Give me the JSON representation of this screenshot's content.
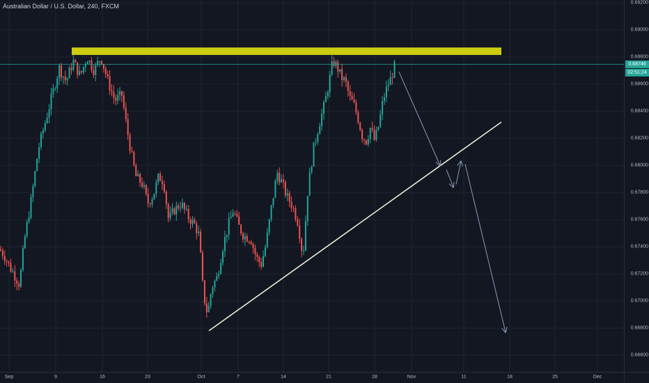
{
  "header": {
    "title": "Australian Dollar / U.S. Dollar, 240, FXCM"
  },
  "colors": {
    "background": "#131722",
    "grid": "#1f2430",
    "up": "#26a69a",
    "down": "#ef5350",
    "resistance_zone": "#cccc10",
    "trendline": "#f0ecd8",
    "projection_arrow": "#8c9bb8",
    "last_price_tag": "#26a69a",
    "countdown_tag": "#26a69a"
  },
  "price_tags": {
    "last_price": "0.68746",
    "countdown": "02:51:24"
  },
  "chart_data": {
    "type": "candlestick",
    "yaxis": {
      "ticks": [
        "0.69200",
        "0.69000",
        "0.68800",
        "0.68600",
        "0.68400",
        "0.68200",
        "0.68000",
        "0.67800",
        "0.67600",
        "0.67400",
        "0.67200",
        "0.67000",
        "0.66800",
        "0.66600"
      ],
      "range": [
        0.6652,
        0.6922
      ]
    },
    "xaxis": {
      "ticks": [
        "Sep",
        "9",
        "16",
        "23",
        "Oct",
        "7",
        "14",
        "21",
        "28",
        "Nov",
        "11",
        "18",
        "25",
        "Dec"
      ]
    },
    "price_path_knots": [
      [
        0,
        0.6738
      ],
      [
        8,
        0.6732
      ],
      [
        14,
        0.6725
      ],
      [
        20,
        0.672
      ],
      [
        28,
        0.6712
      ],
      [
        35,
        0.6745
      ],
      [
        45,
        0.6775
      ],
      [
        55,
        0.6812
      ],
      [
        65,
        0.6832
      ],
      [
        75,
        0.6852
      ],
      [
        85,
        0.6872
      ],
      [
        95,
        0.6862
      ],
      [
        105,
        0.6877
      ],
      [
        115,
        0.6866
      ],
      [
        125,
        0.688
      ],
      [
        135,
        0.687
      ],
      [
        145,
        0.688
      ],
      [
        155,
        0.6862
      ],
      [
        165,
        0.6848
      ],
      [
        175,
        0.6852
      ],
      [
        182,
        0.6828
      ],
      [
        188,
        0.681
      ],
      [
        195,
        0.6792
      ],
      [
        205,
        0.6786
      ],
      [
        212,
        0.6772
      ],
      [
        220,
        0.6778
      ],
      [
        228,
        0.6792
      ],
      [
        235,
        0.6788
      ],
      [
        242,
        0.676
      ],
      [
        250,
        0.6767
      ],
      [
        260,
        0.6772
      ],
      [
        270,
        0.6762
      ],
      [
        280,
        0.6756
      ],
      [
        286,
        0.6748
      ],
      [
        292,
        0.6705
      ],
      [
        298,
        0.669
      ],
      [
        304,
        0.671
      ],
      [
        312,
        0.6718
      ],
      [
        320,
        0.674
      ],
      [
        328,
        0.6756
      ],
      [
        335,
        0.6767
      ],
      [
        342,
        0.6756
      ],
      [
        350,
        0.6748
      ],
      [
        360,
        0.6746
      ],
      [
        368,
        0.6732
      ],
      [
        375,
        0.6727
      ],
      [
        382,
        0.6742
      ],
      [
        390,
        0.677
      ],
      [
        398,
        0.6795
      ],
      [
        405,
        0.6787
      ],
      [
        412,
        0.6777
      ],
      [
        420,
        0.677
      ],
      [
        428,
        0.6758
      ],
      [
        435,
        0.6732
      ],
      [
        442,
        0.6782
      ],
      [
        450,
        0.6812
      ],
      [
        458,
        0.683
      ],
      [
        466,
        0.6845
      ],
      [
        472,
        0.686
      ],
      [
        478,
        0.6877
      ],
      [
        484,
        0.6873
      ],
      [
        490,
        0.6865
      ],
      [
        496,
        0.6862
      ],
      [
        502,
        0.685
      ],
      [
        508,
        0.6845
      ],
      [
        514,
        0.6835
      ],
      [
        520,
        0.6822
      ],
      [
        526,
        0.6818
      ],
      [
        532,
        0.6828
      ],
      [
        538,
        0.6818
      ],
      [
        544,
        0.683
      ],
      [
        550,
        0.6848
      ],
      [
        556,
        0.6858
      ],
      [
        562,
        0.6865
      ],
      [
        567,
        0.6874
      ]
    ],
    "resistance_zone": {
      "price_top": 0.6887,
      "price_bottom": 0.68815
    },
    "last_price": 0.68746,
    "trendline": {
      "from": [
        300,
        0.6678
      ],
      "to": [
        720,
        0.6832
      ]
    },
    "projection_arrows": [
      {
        "from": [
          573,
          0.6869
        ],
        "to": [
          632,
          0.68
        ]
      },
      {
        "from": [
          641,
          0.6797
        ],
        "to": [
          651,
          0.6784
        ]
      },
      {
        "from": [
          655,
          0.6786
        ],
        "to": [
          662,
          0.6803
        ]
      },
      {
        "from": [
          668,
          0.6801
        ],
        "to": [
          726,
          0.6677
        ]
      }
    ]
  }
}
